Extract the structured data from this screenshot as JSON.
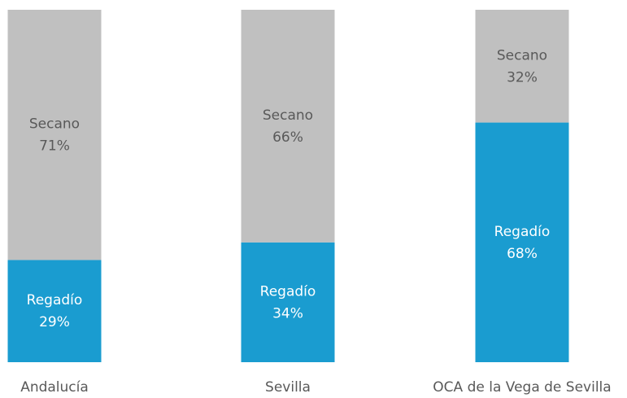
{
  "chart_data": {
    "type": "stacked_bar",
    "categories": [
      "Andalucía",
      "Sevilla",
      "OCA de la Vega de Sevilla"
    ],
    "series": [
      {
        "name": "Regadío",
        "color": "#1a9cd0",
        "values": [
          29,
          34,
          68
        ],
        "value_labels": [
          "29%",
          "34%",
          "68%"
        ],
        "label_color": "#ffffff"
      },
      {
        "name": "Secano",
        "color": "#c0c0c0",
        "values": [
          71,
          66,
          32
        ],
        "value_labels": [
          "71%",
          "66%",
          "32%"
        ],
        "label_color": "#595959"
      }
    ],
    "ylim": [
      0,
      100
    ]
  }
}
